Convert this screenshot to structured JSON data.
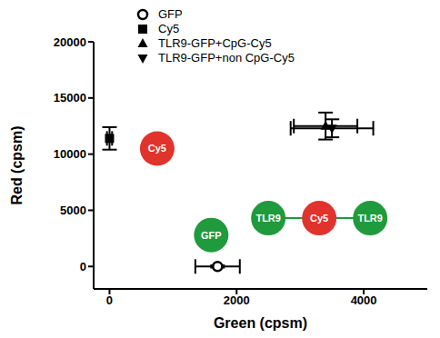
{
  "chart_data": {
    "type": "scatter",
    "x_label": "Green (cpsm)",
    "y_label": "Red (cpsm)",
    "xlim": [
      -250,
      5000
    ],
    "ylim": [
      -2000,
      20000
    ],
    "xticks": [
      0,
      2000,
      4000
    ],
    "yticks": [
      0,
      5000,
      10000,
      15000,
      20000
    ],
    "legend": "upper left",
    "series": [
      {
        "name": "GFP",
        "color": "#000000",
        "marker": "open_circle",
        "x": [
          1700
        ],
        "values": [
          0
        ],
        "x_error": [
          350
        ],
        "y_error": [
          100
        ]
      },
      {
        "name": "Cy5",
        "color": "#000000",
        "marker": "square",
        "x": [
          0
        ],
        "values": [
          11400
        ],
        "x_error": [
          40
        ],
        "y_error": [
          1000
        ]
      },
      {
        "name": "TLR9-GFP+CpG-Cy5",
        "color": "#000000",
        "marker": "triangle_up",
        "x": [
          3400
        ],
        "values": [
          12500
        ],
        "x_error": [
          500
        ],
        "y_error": [
          1200
        ]
      },
      {
        "name": "TLR9-GFP+non CpG-Cy5",
        "color": "#000000",
        "marker": "triangle_down",
        "x": [
          3500
        ],
        "values": [
          12300
        ],
        "x_error": [
          650
        ],
        "y_error": [
          800
        ]
      }
    ],
    "annotations": [
      {
        "labels": [
          "Cy5"
        ],
        "colors": [
          "#e0332b"
        ],
        "x": 750,
        "y": 10500
      },
      {
        "labels": [
          "GFP"
        ],
        "colors": [
          "#1f9a3c"
        ],
        "x": 1600,
        "y": 2800
      },
      {
        "labels": [
          "TLR9",
          "Cy5",
          "TLR9"
        ],
        "colors": [
          "#1f9a3c",
          "#e0332b",
          "#1f9a3c"
        ],
        "x": 3300,
        "y": 4300
      }
    ]
  }
}
